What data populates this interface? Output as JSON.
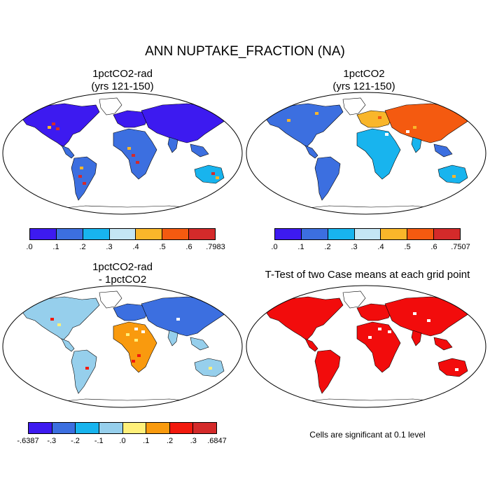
{
  "title": "ANN NUPTAKE_FRACTION (NA)",
  "panels": [
    {
      "id": "p1",
      "title_line1": "1pctCO2-rad",
      "title_line2": "(yrs 121-150)",
      "scheme": "abs"
    },
    {
      "id": "p2",
      "title_line1": "1pctCO2",
      "title_line2": "(yrs 121-150)",
      "scheme": "abs2"
    },
    {
      "id": "p3",
      "title_line1": "1pctCO2-rad",
      "title_line2": "- 1pctCO2",
      "scheme": "diff"
    },
    {
      "id": "p4",
      "title_line1": "T-Test of two Case means at each grid point",
      "title_line2": "",
      "scheme": "ttest"
    }
  ],
  "colorbars": {
    "cb1": {
      "colors": [
        "#3d1af0",
        "#3c6fe0",
        "#18b4ee",
        "#c4e6f4",
        "#f9b62a",
        "#f45a10",
        "#d42a2a"
      ],
      "labels": [
        ".0",
        ".1",
        ".2",
        ".3",
        ".4",
        ".5",
        ".6",
        ".7983"
      ]
    },
    "cb2": {
      "colors": [
        "#3d1af0",
        "#3c6fe0",
        "#18b4ee",
        "#c4e6f4",
        "#f9b62a",
        "#f45a10",
        "#d42a2a"
      ],
      "labels": [
        ".0",
        ".1",
        ".2",
        ".3",
        ".4",
        ".5",
        ".6",
        ".7507"
      ]
    },
    "cb3": {
      "colors": [
        "#3d1af0",
        "#3c6fe0",
        "#18b4ee",
        "#96cfec",
        "#fff07a",
        "#f99a0e",
        "#f21a0e",
        "#d42a2a"
      ],
      "labels": [
        "-.6387",
        "-.3",
        "-.2",
        "-.1",
        ".0",
        ".1",
        ".2",
        ".3",
        ".6847"
      ]
    }
  },
  "ttest_note": "Cells are significant at 0.1 level"
}
